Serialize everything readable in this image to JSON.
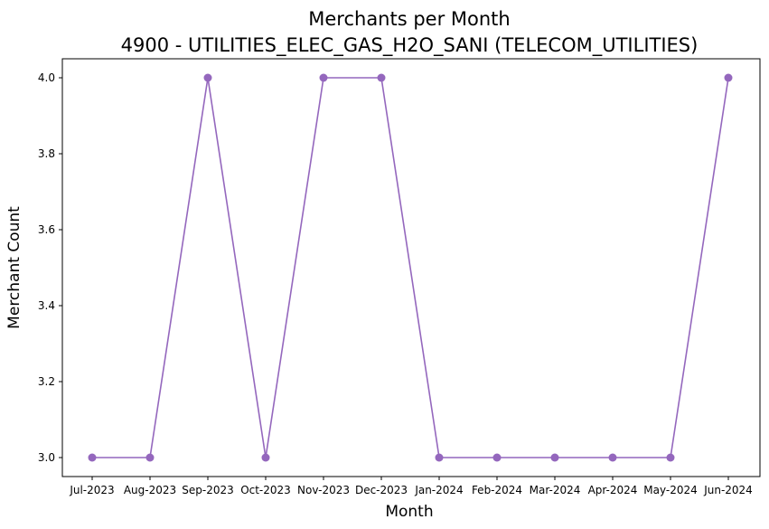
{
  "chart_data": {
    "type": "line",
    "title": "Merchants per Month",
    "subtitle": "4900 - UTILITIES_ELEC_GAS_H2O_SANI (TELECOM_UTILITIES)",
    "xlabel": "Month",
    "ylabel": "Merchant Count",
    "categories": [
      "Jul-2023",
      "Aug-2023",
      "Sep-2023",
      "Oct-2023",
      "Nov-2023",
      "Dec-2023",
      "Jan-2024",
      "Feb-2024",
      "Mar-2024",
      "Apr-2024",
      "May-2024",
      "Jun-2024"
    ],
    "series": [
      {
        "values": [
          3,
          3,
          4,
          3,
          4,
          4,
          3,
          3,
          3,
          3,
          3,
          4
        ],
        "color": "#9467bd",
        "marker": "circle"
      }
    ],
    "ylim": [
      2.95,
      4.05
    ],
    "yticks": [
      "3.0",
      "3.2",
      "3.4",
      "3.6",
      "3.8",
      "4.0"
    ],
    "grid": false,
    "legend": "none"
  }
}
